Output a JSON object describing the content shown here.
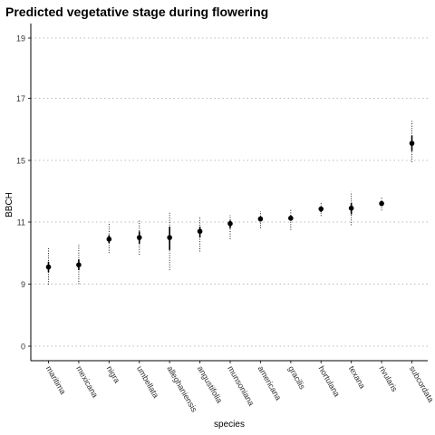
{
  "chart_data": {
    "type": "scatter",
    "title": "Predicted vegetative stage during flowering",
    "xlabel": "species",
    "ylabel": "BBCH",
    "y_tick_labels": [
      "0",
      "9",
      "11",
      "15",
      "17",
      "19"
    ],
    "categories": [
      "maritima",
      "mexicana",
      "nigra",
      "umbellata",
      "alleghaniensis",
      "angustifolia",
      "munsoniana",
      "americana",
      "gracilis",
      "hortulana",
      "texana",
      "rivularis",
      "subcordata"
    ],
    "points": [
      {
        "species": "maritima",
        "y": 9.55,
        "inner_low": 9.38,
        "inner_high": 9.72,
        "outer_low": 8.95,
        "outer_high": 10.2
      },
      {
        "species": "mexicana",
        "y": 9.62,
        "inner_low": 9.45,
        "inner_high": 9.8,
        "outer_low": 9.0,
        "outer_high": 10.3
      },
      {
        "species": "nigra",
        "y": 10.45,
        "inner_low": 10.32,
        "inner_high": 10.58,
        "outer_low": 10.0,
        "outer_high": 10.95
      },
      {
        "species": "umbellata",
        "y": 10.5,
        "inner_low": 10.3,
        "inner_high": 10.7,
        "outer_low": 9.95,
        "outer_high": 11.1
      },
      {
        "species": "alleghaniensis",
        "y": 10.5,
        "inner_low": 10.1,
        "inner_high": 10.85,
        "outer_low": 9.45,
        "outer_high": 11.6
      },
      {
        "species": "angustifolia",
        "y": 10.7,
        "inner_low": 10.5,
        "inner_high": 10.85,
        "outer_low": 10.05,
        "outer_high": 11.3
      },
      {
        "species": "munsoniana",
        "y": 10.95,
        "inner_low": 10.8,
        "inner_high": 11.1,
        "outer_low": 10.45,
        "outer_high": 11.45
      },
      {
        "species": "americana",
        "y": 11.2,
        "inner_low": 11.05,
        "inner_high": 11.35,
        "outer_low": 10.8,
        "outer_high": 11.7
      },
      {
        "species": "gracilis",
        "y": 11.25,
        "inner_low": 11.08,
        "inner_high": 11.42,
        "outer_low": 10.75,
        "outer_high": 11.8
      },
      {
        "species": "hortulana",
        "y": 11.85,
        "inner_low": 11.65,
        "inner_high": 12.0,
        "outer_low": 11.4,
        "outer_high": 12.3
      },
      {
        "species": "texana",
        "y": 11.9,
        "inner_low": 11.5,
        "inner_high": 12.25,
        "outer_low": 10.9,
        "outer_high": 12.95
      },
      {
        "species": "rivularis",
        "y": 12.2,
        "inner_low": 12.05,
        "inner_high": 12.35,
        "outer_low": 11.75,
        "outer_high": 12.6
      },
      {
        "species": "subcordata",
        "y": 15.55,
        "inner_low": 15.3,
        "inner_high": 15.8,
        "outer_low": 14.9,
        "outer_high": 16.3
      }
    ],
    "grid": "horizontal dotted",
    "legend": "none",
    "colors": {
      "point": "#000000",
      "grid": "#bbbbbb",
      "axis": "#000000"
    }
  }
}
